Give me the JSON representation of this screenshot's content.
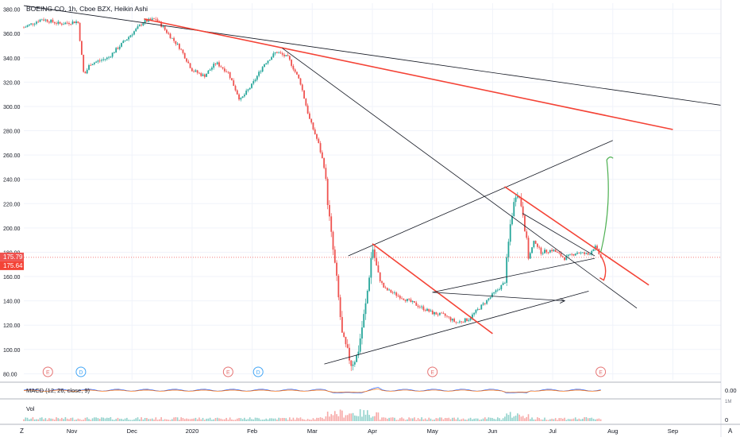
{
  "header": {
    "title": "BOEING CO, 1h, Cboe BZX, Heikin Ashi"
  },
  "price_axis": {
    "ticks": [
      "80.00",
      "100.00",
      "120.00",
      "140.00",
      "160.00",
      "180.00",
      "200.00",
      "220.00",
      "240.00",
      "260.00",
      "280.00",
      "300.00",
      "320.00",
      "340.00",
      "360.00",
      "380.00"
    ],
    "current_price": "175.79",
    "second_price": "175.64"
  },
  "time_axis": {
    "ticks": [
      {
        "label": "Nov",
        "t": 0.8
      },
      {
        "label": "Dec",
        "t": 1.8
      },
      {
        "label": "2020",
        "t": 2.8
      },
      {
        "label": "Feb",
        "t": 3.8
      },
      {
        "label": "Mar",
        "t": 4.8
      },
      {
        "label": "Apr",
        "t": 5.8
      },
      {
        "label": "May",
        "t": 6.8
      },
      {
        "label": "Jun",
        "t": 7.8
      },
      {
        "label": "Jul",
        "t": 8.8
      },
      {
        "label": "Aug",
        "t": 9.8
      },
      {
        "label": "Sep",
        "t": 10.8
      }
    ]
  },
  "events": [
    {
      "label": "E",
      "t": 0.4,
      "color": "#e57373"
    },
    {
      "label": "D",
      "t": 0.95,
      "color": "#42a5f5"
    },
    {
      "label": "E",
      "t": 3.4,
      "color": "#e57373"
    },
    {
      "label": "D",
      "t": 3.9,
      "color": "#42a5f5"
    },
    {
      "label": "E",
      "t": 6.8,
      "color": "#e57373"
    },
    {
      "label": "E",
      "t": 9.6,
      "color": "#e57373"
    }
  ],
  "indicators": {
    "macd_label": "MACD (12, 26, close, 9)",
    "macd_value": "0.00",
    "vol_label": "Vol",
    "vol_axis_top": "1M",
    "vol_axis_zero": "0"
  },
  "corner": {
    "left": "Z",
    "right": "A"
  },
  "colors": {
    "up": "#26a69a",
    "down": "#ef5350",
    "trend_red": "#f44336",
    "trend_black": "#131722",
    "arrow_green": "#4caf50",
    "price_line": "#ef5350"
  },
  "chart_data": {
    "type": "candlestick",
    "title": "BOEING CO, 1h, Cboe BZX, Heikin Ashi",
    "x_unit": "months since Oct 2019",
    "ylim": [
      75,
      385
    ],
    "xlim": [
      0,
      11.6
    ],
    "price_series": [
      [
        0.0,
        365
      ],
      [
        0.3,
        372
      ],
      [
        0.6,
        368
      ],
      [
        0.9,
        370
      ],
      [
        1.0,
        325
      ],
      [
        1.1,
        335
      ],
      [
        1.4,
        340
      ],
      [
        1.6,
        350
      ],
      [
        1.8,
        360
      ],
      [
        2.0,
        370
      ],
      [
        2.2,
        372
      ],
      [
        2.4,
        360
      ],
      [
        2.6,
        348
      ],
      [
        2.8,
        330
      ],
      [
        3.0,
        325
      ],
      [
        3.2,
        336
      ],
      [
        3.4,
        328
      ],
      [
        3.6,
        305
      ],
      [
        3.8,
        318
      ],
      [
        4.0,
        335
      ],
      [
        4.2,
        345
      ],
      [
        4.4,
        340
      ],
      [
        4.6,
        320
      ],
      [
        4.75,
        290
      ],
      [
        4.9,
        270
      ],
      [
        5.0,
        250
      ],
      [
        5.1,
        200
      ],
      [
        5.2,
        160
      ],
      [
        5.3,
        110
      ],
      [
        5.45,
        88
      ],
      [
        5.55,
        95
      ],
      [
        5.7,
        140
      ],
      [
        5.8,
        185
      ],
      [
        5.9,
        160
      ],
      [
        6.0,
        150
      ],
      [
        6.2,
        145
      ],
      [
        6.4,
        140
      ],
      [
        6.6,
        135
      ],
      [
        6.8,
        130
      ],
      [
        7.0,
        128
      ],
      [
        7.2,
        122
      ],
      [
        7.4,
        125
      ],
      [
        7.6,
        135
      ],
      [
        7.8,
        145
      ],
      [
        8.0,
        155
      ],
      [
        8.1,
        205
      ],
      [
        8.2,
        232
      ],
      [
        8.3,
        215
      ],
      [
        8.4,
        175
      ],
      [
        8.5,
        190
      ],
      [
        8.6,
        180
      ],
      [
        8.8,
        182
      ],
      [
        9.0,
        175
      ],
      [
        9.2,
        180
      ],
      [
        9.4,
        178
      ],
      [
        9.5,
        185
      ],
      [
        9.6,
        176
      ]
    ],
    "trendlines": [
      {
        "color": "black",
        "points": [
          [
            0.0,
            383
          ],
          [
            11.6,
            301
          ]
        ]
      },
      {
        "color": "red",
        "points": [
          [
            2.0,
            372
          ],
          [
            10.8,
            281
          ]
        ]
      },
      {
        "color": "black",
        "points": [
          [
            4.3,
            348
          ],
          [
            10.2,
            134
          ]
        ]
      },
      {
        "color": "black",
        "points": [
          [
            5.0,
            88
          ],
          [
            9.4,
            148
          ]
        ]
      },
      {
        "color": "black",
        "points": [
          [
            5.4,
            177
          ],
          [
            9.8,
            272
          ]
        ]
      },
      {
        "color": "red",
        "points": [
          [
            5.8,
            187
          ],
          [
            7.8,
            113
          ]
        ]
      },
      {
        "color": "red",
        "points": [
          [
            8.0,
            234
          ],
          [
            10.4,
            153
          ]
        ]
      },
      {
        "color": "black",
        "points": [
          [
            6.8,
            147
          ],
          [
            9.5,
            175
          ]
        ]
      },
      {
        "color": "black",
        "points": [
          [
            8.3,
            212
          ],
          [
            9.5,
            177
          ]
        ]
      }
    ],
    "annotations": [
      {
        "type": "arrow",
        "color": "black",
        "from": [
          6.8,
          147
        ],
        "to": [
          9.0,
          140
        ]
      },
      {
        "type": "arrow",
        "color": "green",
        "from": [
          9.6,
          180
        ],
        "to": [
          9.7,
          256
        ]
      },
      {
        "type": "arrow",
        "color": "red",
        "from": [
          9.6,
          177
        ],
        "to": [
          9.65,
          157
        ]
      }
    ]
  }
}
